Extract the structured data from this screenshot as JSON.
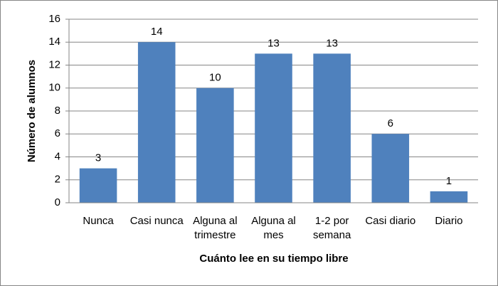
{
  "chart_data": {
    "type": "bar",
    "x_label": "Cuánto lee en su tiempo libre",
    "y_label": "Número de alumnos",
    "categories": [
      "Nunca",
      "Casi nunca",
      "Alguna al trimestre",
      "Alguna al mes",
      "1-2 por semana",
      "Casi diario",
      "Diario"
    ],
    "values": [
      3,
      14,
      10,
      13,
      13,
      6,
      1
    ],
    "color": "#4f81bd",
    "ylim": [
      0,
      16
    ],
    "yticks": [
      0,
      2,
      4,
      6,
      8,
      10,
      12,
      14,
      16
    ],
    "grid": true,
    "data_labels": true
  }
}
